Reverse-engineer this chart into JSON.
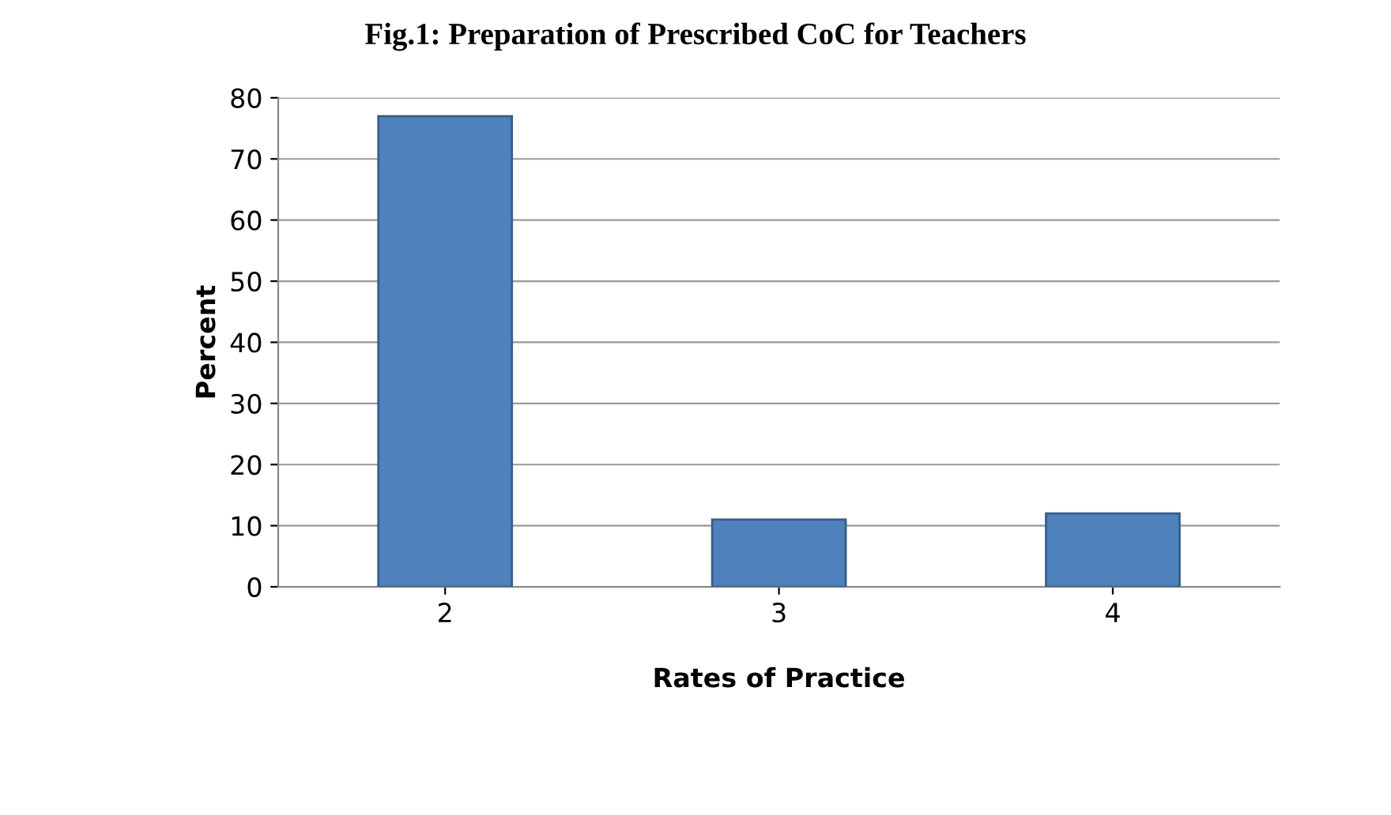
{
  "chart_data": {
    "type": "bar",
    "title": "Fig.1: Preparation of Prescribed CoC for Teachers",
    "xlabel": "Rates of Practice",
    "ylabel": "Percent",
    "categories": [
      "2",
      "3",
      "4"
    ],
    "values": [
      77,
      11,
      12
    ],
    "color": "#4f81bd",
    "ylim": [
      0,
      80
    ],
    "yticks": [
      0,
      10,
      20,
      30,
      40,
      50,
      60,
      70,
      80
    ],
    "grid": "y"
  }
}
